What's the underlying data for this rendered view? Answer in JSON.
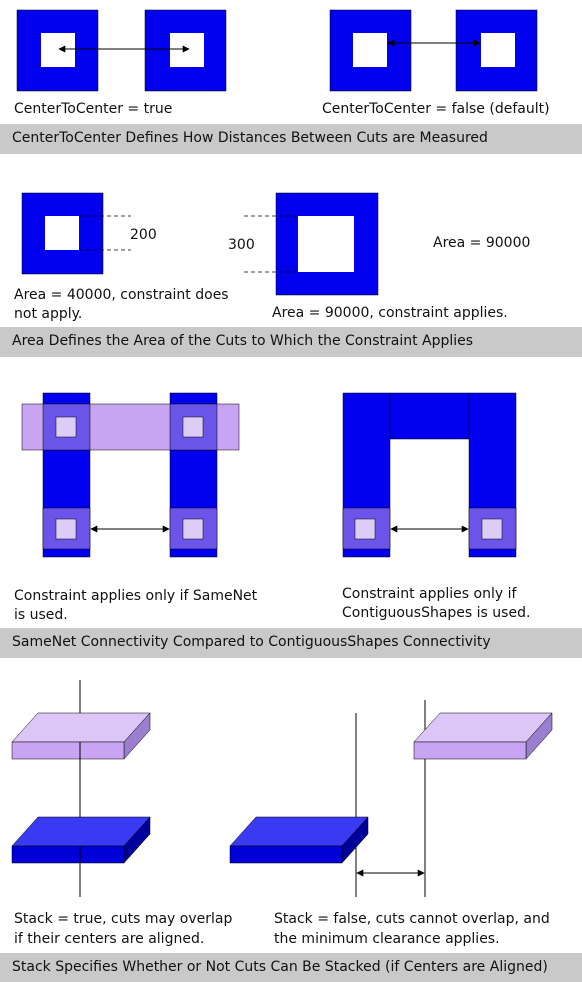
{
  "section1": {
    "left_caption": "CenterToCenter = true",
    "right_caption": "CenterToCenter = false (default)",
    "band": "CenterToCenter Defines How Distances Between Cuts are Measured"
  },
  "section2": {
    "dim_200": "200",
    "dim_300": "300",
    "area_label": "Area = 90000",
    "left_caption_1": "Area = 40000, constraint does",
    "left_caption_2": "not apply.",
    "right_caption": "Area = 90000, constraint applies.",
    "band": "Area Defines the Area of the Cuts to Which the Constraint Applies"
  },
  "section3": {
    "left_caption_1": "Constraint applies only if SameNet",
    "left_caption_2": "is used.",
    "right_caption_1": "Constraint applies only if",
    "right_caption_2": "ContiguousShapes is used.",
    "band": "SameNet Connectivity Compared to ContiguousShapes Connectivity"
  },
  "section4": {
    "left_caption_1": "Stack = true, cuts may overlap",
    "left_caption_2": "if their centers are aligned.",
    "right_caption_1": "Stack = false, cuts cannot overlap, and",
    "right_caption_2": "the minimum clearance applies.",
    "band": "Stack Specifies Whether or Not Cuts Can Be Stacked (if Centers are Aligned)"
  },
  "colors": {
    "metal_blue": "#0000ee",
    "light_purple": "#c8a4f2",
    "cut_fill": "#dccdf6",
    "cut_region": "#6a55e8",
    "band_gray": "#c9c9c9"
  }
}
